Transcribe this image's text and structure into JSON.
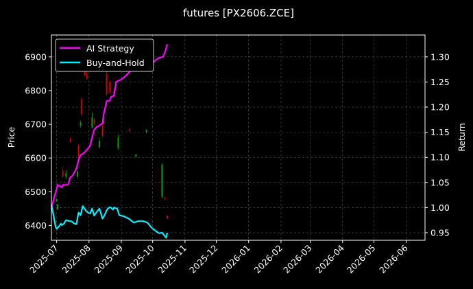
{
  "chart_data": {
    "type": "line",
    "title": "futures [PX2606.ZCE]",
    "xlabel": "",
    "ylabel_left": "Price",
    "ylabel_right": "Return",
    "x_ticks": [
      "2025-07",
      "2025-08",
      "2025-09",
      "2025-10",
      "2025-11",
      "2025-12",
      "2026-01",
      "2026-02",
      "2026-03",
      "2026-04",
      "2026-05",
      "2026-06"
    ],
    "x_range": [
      "2025-06-26",
      "2026-06-19"
    ],
    "ylim_left": [
      6356,
      6965
    ],
    "ylim_right": [
      0.935,
      1.3435
    ],
    "y_ticks_left": [
      6400,
      6500,
      6600,
      6700,
      6800,
      6900
    ],
    "y_ticks_right": [
      0.95,
      1.0,
      1.05,
      1.1,
      1.15,
      1.2,
      1.25,
      1.3
    ],
    "grid": true,
    "legend_position": "top-left",
    "colors": {
      "background": "#000000",
      "ai_strategy": "#ff00ff",
      "buy_and_hold": "#00f0ff",
      "candle_up": "#d00000",
      "candle_down": "#00a000",
      "grid": "#555555"
    },
    "candles": [
      {
        "date": "2025-07-01",
        "open": 6478,
        "close": 6472,
        "high": 6480,
        "low": 6470
      },
      {
        "date": "2025-07-02",
        "open": 6462,
        "close": 6448,
        "high": 6465,
        "low": 6445
      },
      {
        "date": "2025-07-07",
        "open": 6545,
        "close": 6562,
        "high": 6575,
        "low": 6540
      },
      {
        "date": "2025-07-10",
        "open": 6555,
        "close": 6545,
        "high": 6565,
        "low": 6538
      },
      {
        "date": "2025-07-14",
        "open": 6650,
        "close": 6655,
        "high": 6660,
        "low": 6645
      },
      {
        "date": "2025-07-21",
        "open": 6560,
        "close": 6545,
        "high": 6570,
        "low": 6540
      },
      {
        "date": "2025-07-22",
        "open": 6605,
        "close": 6635,
        "high": 6640,
        "low": 6600
      },
      {
        "date": "2025-07-24",
        "open": 6705,
        "close": 6695,
        "high": 6712,
        "low": 6690
      },
      {
        "date": "2025-07-25",
        "open": 6730,
        "close": 6775,
        "high": 6780,
        "low": 6725
      },
      {
        "date": "2025-07-28",
        "open": 6845,
        "close": 6860,
        "high": 6870,
        "low": 6840
      },
      {
        "date": "2025-07-30",
        "open": 6835,
        "close": 6850,
        "high": 6858,
        "low": 6832
      },
      {
        "date": "2025-08-04",
        "open": 6720,
        "close": 6690,
        "high": 6735,
        "low": 6688
      },
      {
        "date": "2025-08-06",
        "open": 6700,
        "close": 6715,
        "high": 6720,
        "low": 6695
      },
      {
        "date": "2025-08-11",
        "open": 6650,
        "close": 6632,
        "high": 6660,
        "low": 6630
      },
      {
        "date": "2025-08-14",
        "open": 6665,
        "close": 6695,
        "high": 6700,
        "low": 6660
      },
      {
        "date": "2025-08-15",
        "open": 6700,
        "close": 6720,
        "high": 6725,
        "low": 6695
      },
      {
        "date": "2025-08-18",
        "open": 6790,
        "close": 6850,
        "high": 6870,
        "low": 6785
      },
      {
        "date": "2025-08-21",
        "open": 6795,
        "close": 6825,
        "high": 6830,
        "low": 6790
      },
      {
        "date": "2025-08-25",
        "open": 6785,
        "close": 6800,
        "high": 6805,
        "low": 6780
      },
      {
        "date": "2025-08-29",
        "open": 6660,
        "close": 6630,
        "high": 6670,
        "low": 6625
      },
      {
        "date": "2025-09-09",
        "open": 6680,
        "close": 6685,
        "high": 6688,
        "low": 6677
      },
      {
        "date": "2025-09-15",
        "open": 6610,
        "close": 6605,
        "high": 6613,
        "low": 6602
      },
      {
        "date": "2025-09-25",
        "open": 6683,
        "close": 6677,
        "high": 6686,
        "low": 6674
      },
      {
        "date": "2025-10-10",
        "open": 6580,
        "close": 6485,
        "high": 6585,
        "low": 6480
      },
      {
        "date": "2025-10-13",
        "open": 6478,
        "close": 6482,
        "high": 6485,
        "low": 6475
      },
      {
        "date": "2025-10-15",
        "open": 6420,
        "close": 6428,
        "high": 6430,
        "low": 6418
      }
    ],
    "series": [
      {
        "name": "AI Strategy",
        "axis": "right",
        "points": [
          [
            "2025-06-26",
            0.997
          ],
          [
            "2025-06-28",
            1.015
          ],
          [
            "2025-06-30",
            1.03
          ],
          [
            "2025-07-02",
            1.045
          ],
          [
            "2025-07-04",
            1.043
          ],
          [
            "2025-07-06",
            1.04
          ],
          [
            "2025-07-07",
            1.045
          ],
          [
            "2025-07-10",
            1.045
          ],
          [
            "2025-07-12",
            1.046
          ],
          [
            "2025-07-14",
            1.06
          ],
          [
            "2025-07-16",
            1.063
          ],
          [
            "2025-07-18",
            1.07
          ],
          [
            "2025-07-20",
            1.078
          ],
          [
            "2025-07-22",
            1.095
          ],
          [
            "2025-07-24",
            1.105
          ],
          [
            "2025-07-27",
            1.108
          ],
          [
            "2025-07-30",
            1.115
          ],
          [
            "2025-08-02",
            1.123
          ],
          [
            "2025-08-04",
            1.14
          ],
          [
            "2025-08-06",
            1.155
          ],
          [
            "2025-08-08",
            1.16
          ],
          [
            "2025-08-11",
            1.163
          ],
          [
            "2025-08-14",
            1.168
          ],
          [
            "2025-08-15",
            1.185
          ],
          [
            "2025-08-18",
            1.212
          ],
          [
            "2025-08-21",
            1.213
          ],
          [
            "2025-08-22",
            1.22
          ],
          [
            "2025-08-25",
            1.223
          ],
          [
            "2025-08-27",
            1.25
          ],
          [
            "2025-09-01",
            1.255
          ],
          [
            "2025-09-05",
            1.262
          ],
          [
            "2025-09-10",
            1.272
          ],
          [
            "2025-09-15",
            1.277
          ],
          [
            "2025-09-20",
            1.276
          ],
          [
            "2025-09-24",
            1.272
          ],
          [
            "2025-09-27",
            1.275
          ],
          [
            "2025-09-30",
            1.283
          ],
          [
            "2025-10-03",
            1.292
          ],
          [
            "2025-10-07",
            1.298
          ],
          [
            "2025-10-11",
            1.3
          ],
          [
            "2025-10-13",
            1.31
          ],
          [
            "2025-10-15",
            1.325
          ]
        ]
      },
      {
        "name": "Buy-and-Hold",
        "axis": "right",
        "points": [
          [
            "2025-06-26",
            1.005
          ],
          [
            "2025-06-28",
            0.985
          ],
          [
            "2025-06-30",
            0.962
          ],
          [
            "2025-07-01",
            0.958
          ],
          [
            "2025-07-03",
            0.962
          ],
          [
            "2025-07-05",
            0.968
          ],
          [
            "2025-07-06",
            0.965
          ],
          [
            "2025-07-08",
            0.968
          ],
          [
            "2025-07-10",
            0.975
          ],
          [
            "2025-07-13",
            0.973
          ],
          [
            "2025-07-15",
            0.973
          ],
          [
            "2025-07-18",
            0.968
          ],
          [
            "2025-07-20",
            0.967
          ],
          [
            "2025-07-22",
            0.99
          ],
          [
            "2025-07-24",
            0.985
          ],
          [
            "2025-07-26",
            1.003
          ],
          [
            "2025-07-29",
            0.994
          ],
          [
            "2025-07-31",
            0.99
          ],
          [
            "2025-08-02",
            0.988
          ],
          [
            "2025-08-04",
            0.998
          ],
          [
            "2025-08-06",
            0.984
          ],
          [
            "2025-08-09",
            0.993
          ],
          [
            "2025-08-11",
            0.998
          ],
          [
            "2025-08-14",
            0.978
          ],
          [
            "2025-08-16",
            0.985
          ],
          [
            "2025-08-18",
            0.995
          ],
          [
            "2025-08-20",
            1.0
          ],
          [
            "2025-08-22",
            1.0
          ],
          [
            "2025-08-24",
            0.996
          ],
          [
            "2025-08-25",
            1.0
          ],
          [
            "2025-08-28",
            0.998
          ],
          [
            "2025-08-30",
            0.985
          ],
          [
            "2025-09-03",
            0.983
          ],
          [
            "2025-09-08",
            0.978
          ],
          [
            "2025-09-13",
            0.97
          ],
          [
            "2025-09-17",
            0.973
          ],
          [
            "2025-09-22",
            0.973
          ],
          [
            "2025-09-26",
            0.97
          ],
          [
            "2025-09-30",
            0.96
          ],
          [
            "2025-10-03",
            0.955
          ],
          [
            "2025-10-07",
            0.949
          ],
          [
            "2025-10-10",
            0.95
          ],
          [
            "2025-10-12",
            0.945
          ],
          [
            "2025-10-14",
            0.94
          ],
          [
            "2025-10-15",
            0.95
          ]
        ]
      }
    ]
  }
}
